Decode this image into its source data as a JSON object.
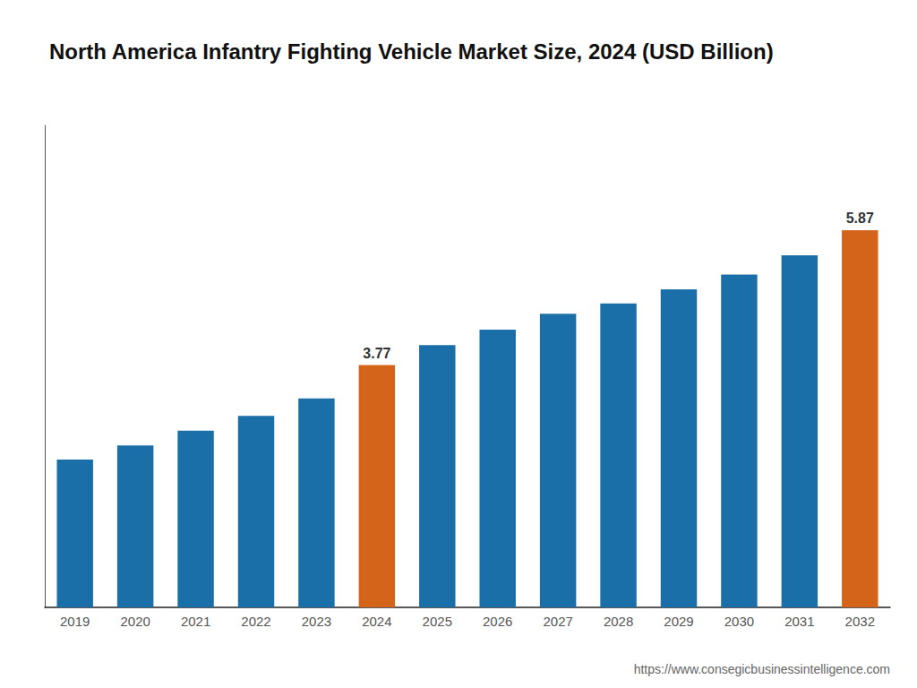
{
  "chart_data": {
    "type": "bar",
    "title": "North America Infantry Fighting Vehicle Market Size, 2024 (USD Billion)",
    "categories": [
      "2019",
      "2020",
      "2021",
      "2022",
      "2023",
      "2024",
      "2025",
      "2026",
      "2027",
      "2028",
      "2029",
      "2030",
      "2031",
      "2032"
    ],
    "values": [
      2.3,
      2.52,
      2.75,
      2.98,
      3.25,
      3.77,
      4.08,
      4.32,
      4.57,
      4.73,
      4.95,
      5.18,
      5.48,
      5.87
    ],
    "colors": [
      "#1b6fa8",
      "#1b6fa8",
      "#1b6fa8",
      "#1b6fa8",
      "#1b6fa8",
      "#d4641a",
      "#1b6fa8",
      "#1b6fa8",
      "#1b6fa8",
      "#1b6fa8",
      "#1b6fa8",
      "#1b6fa8",
      "#1b6fa8",
      "#d4641a"
    ],
    "annotations": [
      {
        "text": "3.77",
        "x": "2024",
        "y": 3.77
      },
      {
        "text": "5.87",
        "x": "2032",
        "y": 5.87
      },
      {
        "text": "https://www.consegicbusinessintelligence.com"
      }
    ],
    "ylim": [
      0,
      7.5
    ],
    "grid": false,
    "tick_labels": "x"
  }
}
